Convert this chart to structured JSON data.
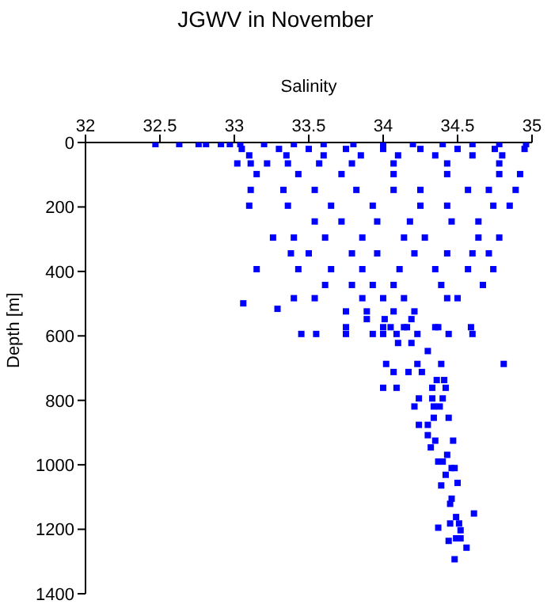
{
  "chart_data": {
    "type": "scatter",
    "title": "JGWV in November",
    "xlabel": "Salinity",
    "ylabel": "Depth [m]",
    "xlim": [
      32,
      35
    ],
    "xticks": [
      32,
      32.5,
      33,
      33.5,
      34,
      34.5,
      35
    ],
    "ylim": [
      1400,
      0
    ],
    "yticks": [
      0,
      200,
      400,
      600,
      800,
      1000,
      1200,
      1400
    ],
    "marker": "square",
    "series": [
      {
        "color": "#0000ff",
        "x": [
          32.47,
          32.63,
          32.76,
          32.81,
          32.91,
          32.97,
          33.04,
          33.2,
          33.4,
          33.6,
          33.8,
          34.0,
          34.2,
          34.4,
          34.6,
          34.78,
          34.96,
          33.05,
          33.3,
          33.5,
          33.75,
          34.0,
          34.25,
          34.5,
          34.75,
          34.95,
          33.1,
          33.35,
          33.6,
          33.85,
          34.1,
          34.35,
          34.6,
          34.8,
          33.02,
          33.11,
          33.22,
          33.36,
          33.57,
          33.79,
          34.07,
          34.43,
          34.78,
          33.15,
          33.43,
          33.72,
          34.07,
          34.43,
          34.78,
          34.92,
          33.11,
          33.33,
          33.54,
          33.82,
          34.07,
          34.25,
          34.57,
          34.71,
          34.89,
          33.1,
          33.36,
          33.65,
          33.93,
          34.25,
          34.43,
          34.74,
          34.85,
          33.54,
          33.72,
          33.96,
          34.18,
          34.46,
          34.64,
          33.26,
          33.4,
          33.61,
          33.86,
          34.14,
          34.28,
          34.64,
          34.78,
          33.38,
          33.5,
          33.79,
          33.96,
          34.21,
          34.43,
          34.6,
          34.71,
          33.15,
          33.43,
          33.65,
          33.86,
          34.11,
          34.35,
          34.57,
          34.74,
          33.61,
          33.79,
          33.93,
          34.07,
          34.39,
          34.67,
          33.4,
          33.54,
          33.86,
          34.0,
          34.14,
          34.43,
          34.5,
          33.06,
          33.29,
          33.75,
          33.89,
          34.07,
          34.21,
          33.75,
          34.0,
          34.14,
          34.35,
          34.59,
          33.89,
          34.01,
          34.19,
          34.05,
          34.16,
          34.37,
          33.45,
          33.55,
          33.75,
          33.93,
          34.0,
          34.09,
          34.23,
          34.44,
          34.6,
          34.1,
          34.19,
          34.3,
          34.02,
          34.23,
          34.39,
          34.81,
          34.07,
          34.17,
          34.26,
          34.36,
          34.41,
          34.0,
          34.09,
          34.33,
          34.42,
          34.24,
          34.33,
          34.4,
          34.21,
          34.34,
          34.38,
          34.34,
          34.44,
          34.24,
          34.3,
          34.3,
          34.35,
          34.47,
          34.32,
          34.43,
          34.37,
          34.4,
          34.46,
          34.48,
          34.42,
          34.5,
          34.39,
          34.46,
          34.45,
          34.61,
          34.49,
          34.45,
          34.51,
          34.37,
          34.52,
          34.49,
          34.52,
          34.44,
          34.56,
          34.48
        ],
        "values": [
          5,
          5,
          5,
          5,
          5,
          5,
          5,
          5,
          5,
          5,
          5,
          5,
          5,
          5,
          5,
          5,
          5,
          20,
          20,
          20,
          20,
          20,
          20,
          20,
          20,
          20,
          40,
          40,
          40,
          40,
          40,
          40,
          40,
          40,
          65,
          65,
          65,
          65,
          65,
          65,
          65,
          65,
          65,
          98,
          98,
          98,
          98,
          98,
          98,
          98,
          147,
          147,
          147,
          147,
          147,
          147,
          147,
          147,
          147,
          196,
          196,
          196,
          196,
          196,
          196,
          196,
          196,
          245,
          245,
          245,
          245,
          245,
          245,
          295,
          295,
          295,
          295,
          295,
          295,
          295,
          295,
          344,
          344,
          344,
          344,
          344,
          344,
          344,
          344,
          393,
          393,
          393,
          393,
          393,
          393,
          393,
          393,
          442,
          442,
          442,
          442,
          442,
          442,
          483,
          483,
          483,
          483,
          483,
          483,
          483,
          499,
          516,
          524,
          524,
          524,
          524,
          573,
          573,
          573,
          573,
          573,
          548,
          548,
          548,
          573,
          573,
          573,
          594,
          594,
          594,
          594,
          594,
          594,
          594,
          594,
          594,
          622,
          622,
          647,
          687,
          687,
          687,
          687,
          712,
          712,
          712,
          737,
          737,
          761,
          761,
          761,
          761,
          794,
          794,
          794,
          819,
          819,
          819,
          854,
          854,
          876,
          876,
          908,
          925,
          925,
          946,
          969,
          990,
          990,
          1010,
          1010,
          1031,
          1056,
          1064,
          1105,
          1121,
          1151,
          1162,
          1182,
          1182,
          1195,
          1203,
          1228,
          1228,
          1236,
          1257,
          1293
        ]
      }
    ]
  }
}
